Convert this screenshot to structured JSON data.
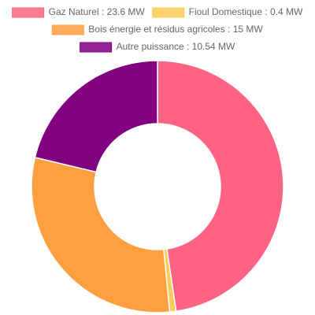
{
  "chart_data": {
    "type": "doughnut",
    "categories": [
      "Gaz Naturel : 23.6 MW",
      "Fioul Domestique : 0.4 MW",
      "Bois énergie et résidus agricoles : 15 MW",
      "Autre puissance : 10.54 MW"
    ],
    "values": [
      23.6,
      0.4,
      15,
      10.54
    ],
    "colors": [
      "#ff6384",
      "#ffcd56",
      "#ff9f40",
      "#800080"
    ],
    "legend": "top"
  }
}
